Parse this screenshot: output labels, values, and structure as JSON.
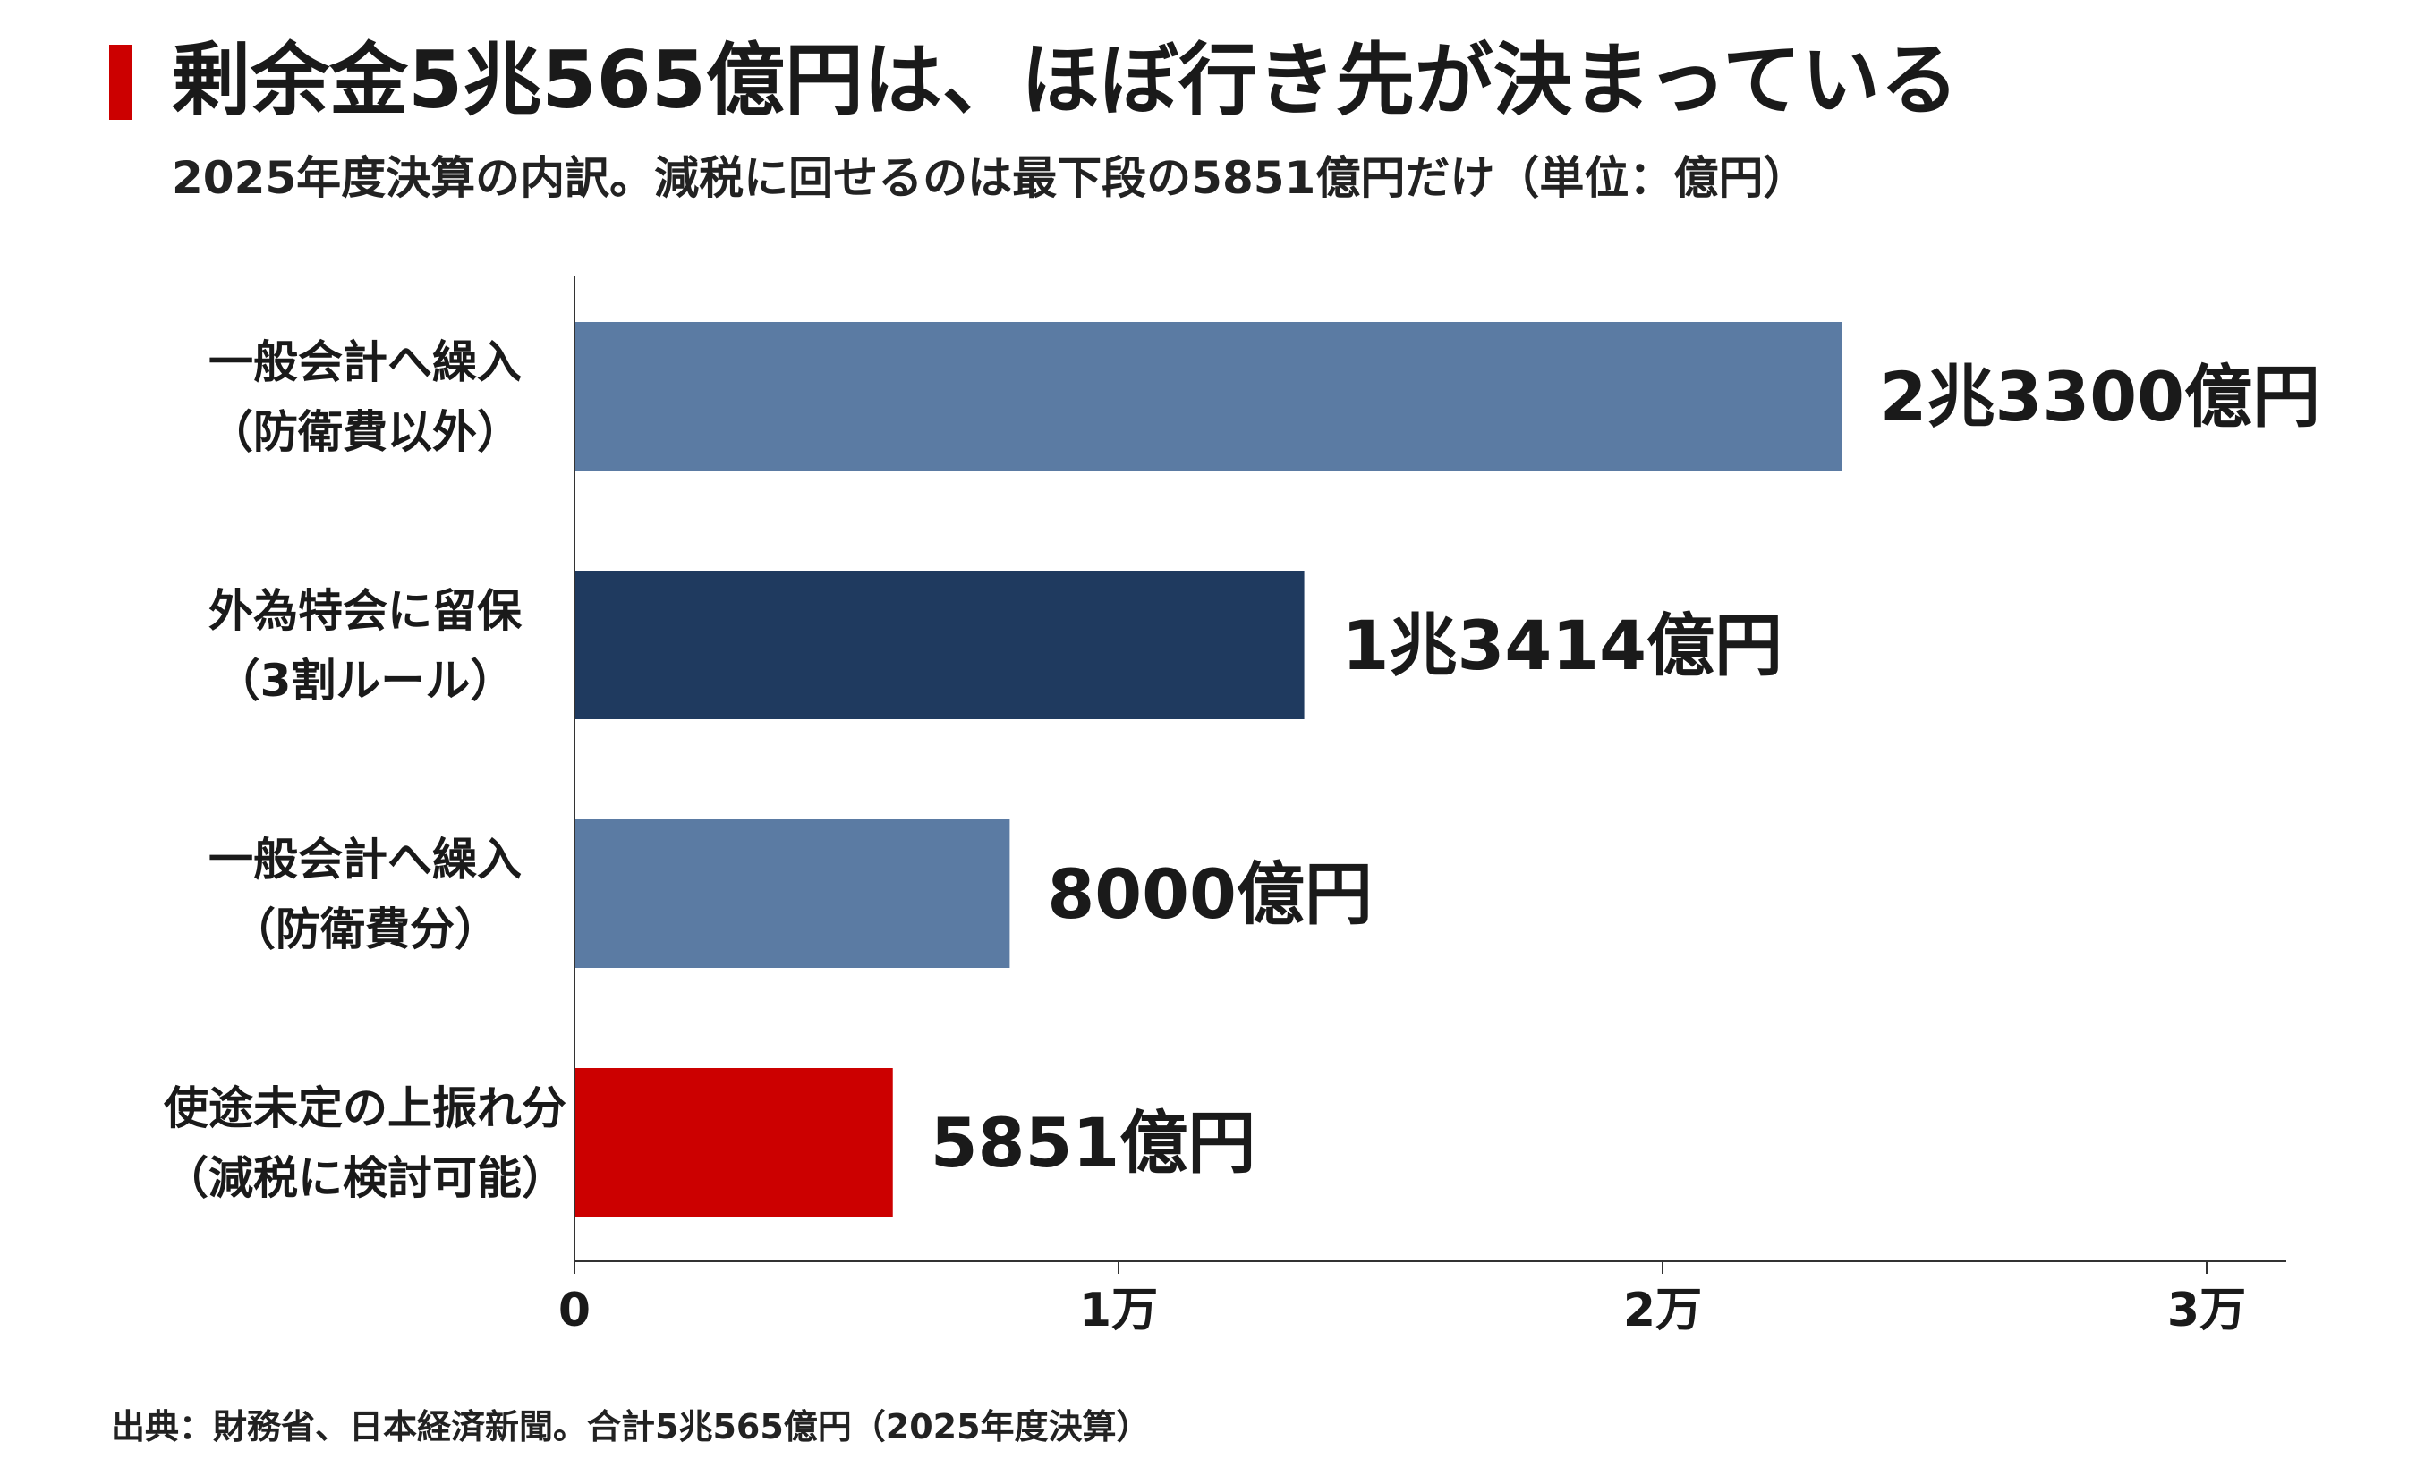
{
  "header": {
    "title": "剰余金5兆565億円は、ほぼ行き先が決まっている",
    "subtitle": "2025年度決算の内訳。減税に回せるのは最下段の5851億円だけ（単位：億円）"
  },
  "footer": {
    "source": "出典：財務省、日本経済新聞。合計5兆565億円（2025年度決算）"
  },
  "colors": {
    "accent": "#cc0000",
    "bar_light": "#5b7ba3",
    "bar_dark": "#1f3a5f",
    "bar_highlight": "#cc0000"
  },
  "chart_data": {
    "type": "bar",
    "orientation": "horizontal",
    "categories": [
      [
        "一般会計へ繰入",
        "（防衛費以外）"
      ],
      [
        "外為特会に留保",
        "（3割ルール）"
      ],
      [
        "一般会計へ繰入",
        "（防衛費分）"
      ],
      [
        "使途未定の上振れ分",
        "（減税に検討可能）"
      ]
    ],
    "values": [
      23300,
      13414,
      8000,
      5851
    ],
    "value_labels": [
      "2兆3300億円",
      "1兆3414億円",
      "8000億円",
      "5851億円"
    ],
    "bar_colors": [
      "#5b7ba3",
      "#1f3a5f",
      "#5b7ba3",
      "#cc0000"
    ],
    "xlim": [
      0,
      31500
    ],
    "xticks": [
      0,
      10000,
      20000,
      30000
    ],
    "xtick_labels": [
      "0",
      "1万",
      "2万",
      "3万"
    ],
    "grid": false
  }
}
